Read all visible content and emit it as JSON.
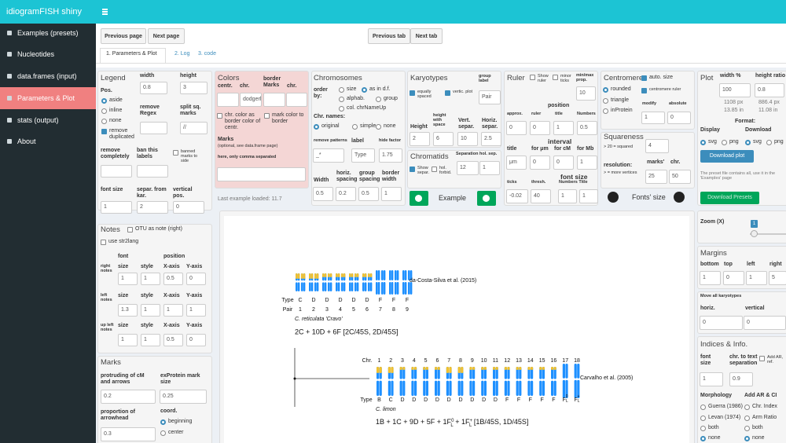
{
  "header": {
    "title": "idiogramFISH shiny"
  },
  "sidebar": [
    "Examples (presets)",
    "Nucleotides",
    "data.frames (input)",
    "Parameters & Plot",
    "stats (output)",
    "About"
  ],
  "nav": [
    "Previous page",
    "Next page",
    "Previous tab",
    "Next tab"
  ],
  "tabs": [
    "1. Parameters & Plot",
    "2. Log",
    "3. code"
  ],
  "legend": {
    "title": "Legend",
    "labels": [
      "width",
      "height",
      "Pos.",
      "remove Regex",
      "split sq. marks",
      "remove completely",
      "ban this labels",
      "font size",
      "separ. from kar.",
      "vertical pos."
    ],
    "options": [
      "aside",
      "inline",
      "none",
      "remove duplicated",
      "banned marks to side"
    ],
    "inputs": [
      "0.8",
      "3",
      "//",
      "1",
      "2",
      "0"
    ]
  },
  "colors": {
    "title": "Colors",
    "labels": [
      "centr.",
      "chr.",
      "border Marks",
      "chr.",
      "Marks",
      "(optional, see data.frame page)",
      "here, only comma separated"
    ],
    "options": [
      "chr. color as border color of centr.",
      "mark color to border"
    ],
    "inputs": [
      "dodgerl"
    ],
    "status": "Last example loaded: 11.7"
  },
  "chromosomes": {
    "title": "Chromosomes",
    "labels": [
      "order by:",
      "Chr. names:",
      "remove patterns",
      "label",
      "hide factor",
      "Width",
      "horiz. spacing",
      "group spacing",
      "border width"
    ],
    "options": [
      "size",
      "as in d.f.",
      "alphab.",
      "group",
      "col. chrNameUp",
      "original",
      "simple",
      "none"
    ],
    "inputs": [
      "_*",
      "Type",
      "1.75",
      "0.5",
      "0.2",
      "0.5",
      "1"
    ]
  },
  "karyotypes": {
    "title": "Karyotypes",
    "labels": [
      "group label",
      "Height",
      "height with space",
      "Vert. separ.",
      "Horiz. separ."
    ],
    "options": [
      "equally spaced",
      "vertic. plot"
    ],
    "inputs": [
      "Pair",
      "2",
      "6",
      "10",
      "2.5"
    ]
  },
  "chromatids": {
    "title": "Chromatids",
    "labels": [
      "Separation",
      "hol. sep."
    ],
    "options": [
      "Show separ.",
      "hol. forbid."
    ],
    "inputs": [
      "12",
      "1"
    ]
  },
  "example": {
    "label": "Example"
  },
  "ruler": {
    "title": "Ruler",
    "labels": [
      "min/max prop.",
      "position",
      "approx.",
      "ruler",
      "title",
      "Numbers",
      "interval",
      "title",
      "for μm",
      "for cM",
      "for Mb",
      "ticks",
      "thresh.",
      "font size",
      "Numbers Title"
    ],
    "options": [
      "Show ruler",
      "minor ticks"
    ],
    "inputs": [
      "10",
      "0",
      "0",
      "1",
      "0.5",
      "μm",
      "0",
      "0",
      "1",
      "-0.02",
      "40",
      "1",
      "1"
    ],
    "fonts_size": "Fonts' size"
  },
  "centromere": {
    "title": "Centromere",
    "labels": [
      "modify",
      "absolute"
    ],
    "options": [
      "auto. size",
      "rounded",
      "centromere ruler",
      "triangle",
      "inProtein"
    ],
    "inputs": [
      "1",
      "0"
    ]
  },
  "squareness": {
    "title": "Squareness",
    "labels": [
      "> 20 = squared",
      "resolution:",
      "> = more vertices",
      "marks'",
      "chr."
    ],
    "inputs": [
      "4",
      "25",
      "50"
    ]
  },
  "plot": {
    "title": "Plot",
    "labels": [
      "width %",
      "height ratio",
      "Format:",
      "Display",
      "Download"
    ],
    "inputs": [
      "100",
      "0.8"
    ],
    "info": [
      "1108 px",
      "13.85 in",
      "886.4 px",
      "11.08 in"
    ],
    "options": [
      "svg",
      "png",
      "svg",
      "png"
    ],
    "buttons": [
      "Download plot",
      "Download Presets"
    ],
    "note": "The preset file contains all, use it in the 'Examples' page"
  },
  "notes": {
    "title": "Notes",
    "options": [
      "OTU as note (right)",
      "use str2lang"
    ],
    "labels": [
      "font",
      "position",
      "right notes",
      "size",
      "style",
      "X-axis",
      "Y-axis",
      "left notes",
      "size",
      "style",
      "X-axis",
      "Y-axis",
      "up left notes",
      "size",
      "style",
      "X-axis",
      "Y-axis"
    ],
    "inputs": [
      "1",
      "1",
      "0.5",
      "0",
      "1.3",
      "1",
      "1",
      "1",
      "1",
      "1",
      "0.5",
      "0"
    ]
  },
  "marks": {
    "title": "Marks",
    "labels": [
      "protruding of cM and arrows",
      "exProtein mark size",
      "proportion of arrowhead",
      "coord."
    ],
    "inputs": [
      "0.2",
      "0.25",
      "0.3"
    ],
    "options": [
      "beginning",
      "center"
    ]
  },
  "zoom": {
    "title": "Zoom (X)",
    "value": "1"
  },
  "margins": {
    "title": "Margins",
    "labels": [
      "bottom",
      "top",
      "left",
      "right"
    ],
    "inputs": [
      "1",
      "0",
      "1",
      "5"
    ]
  },
  "move": {
    "title": "Move all karyotypes",
    "labels": [
      "horiz.",
      "vertical"
    ],
    "inputs": [
      "0",
      "0"
    ]
  },
  "indices": {
    "title": "Indices & Info.",
    "labels": [
      "font size",
      "chr. to text separation",
      "Morphology",
      "Add AR & CI"
    ],
    "options": [
      "Add AR, ref.",
      "Guerra (1986)",
      "Chr. Index",
      "Levan (1974)",
      "Arm Ratio",
      "both",
      "both",
      "none",
      "none"
    ],
    "inputs": [
      "1",
      "0.9"
    ]
  },
  "figure": {
    "karyotype1": {
      "source": "da-Costa-Silva et al. (2015)",
      "type_label": "Type",
      "types": [
        "C",
        "D",
        "D",
        "D",
        "D",
        "D",
        "F",
        "F",
        "F"
      ],
      "pair_label": "Pair",
      "pairs": [
        "1",
        "2",
        "3",
        "4",
        "5",
        "6",
        "7",
        "8",
        "9"
      ],
      "species": "C. reticulata 'Cravo'",
      "formula": "2C + 10D + 6F [2C/45S, 2D/45S]"
    },
    "karyotype2": {
      "source": "Carvalho et al. (2005)",
      "chr_label": "Chr.",
      "chrs": [
        "1",
        "2",
        "3",
        "4",
        "5",
        "6",
        "7",
        "8",
        "9",
        "10",
        "11",
        "12",
        "13",
        "14",
        "15",
        "16",
        "17",
        "18"
      ],
      "type_label": "Type",
      "types": [
        "B",
        "C",
        "D",
        "D",
        "D",
        "D",
        "D",
        "D",
        "D",
        "D",
        "D",
        "F",
        "F",
        "F",
        "F",
        "F",
        {
          "text": "F",
          "sup": "0",
          "sub": "L"
        },
        {
          "text": "F",
          "sup": "+",
          "sub": "L"
        }
      ],
      "species": "C. limon",
      "formula": [
        "1B + 1C + 9D + 5F + 1F",
        "0",
        "L",
        " + 1F",
        "+",
        "L",
        " [1B/45S, 1D/45S]"
      ]
    }
  }
}
